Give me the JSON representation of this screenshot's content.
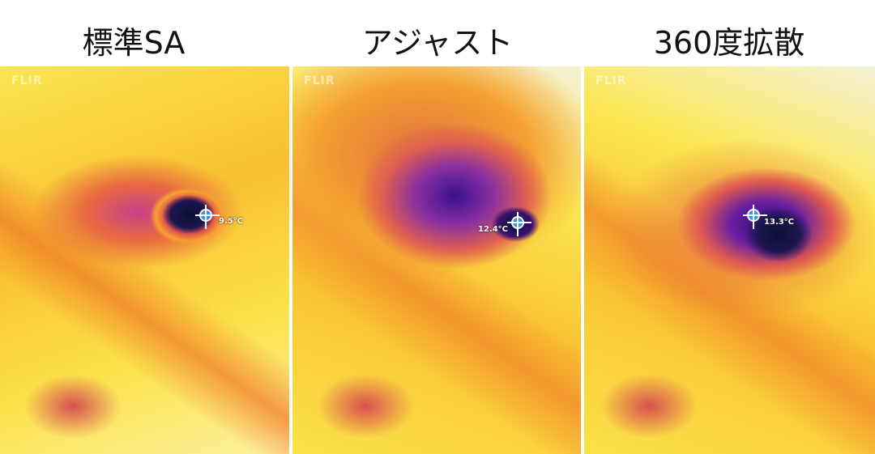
{
  "panels": [
    {
      "title": "標準SA",
      "logo": "FLIR",
      "spot_temp": "9.5°C"
    },
    {
      "title": "アジャスト",
      "logo": "FLIR",
      "spot_temp": "12.4°C"
    },
    {
      "title": "360度拡散",
      "logo": "FLIR",
      "spot_temp": "13.3°C"
    }
  ]
}
